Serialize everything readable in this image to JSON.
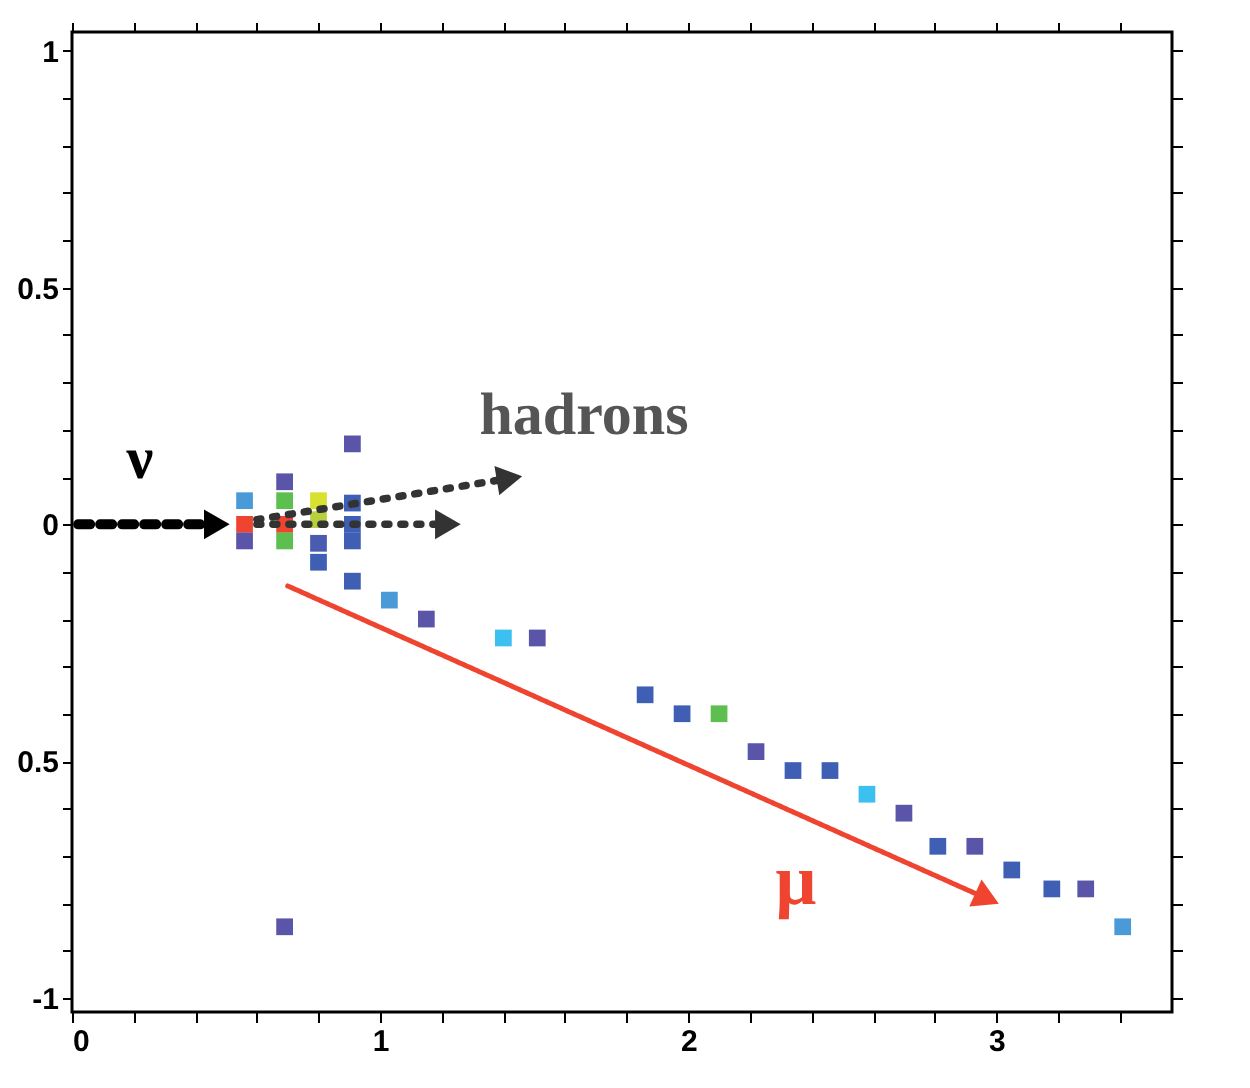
{
  "chart_data": {
    "type": "scatter",
    "marker": "square",
    "grid": false,
    "x": [
      0.56,
      0.56,
      0.56,
      0.69,
      0.69,
      0.69,
      0.69,
      0.8,
      0.8,
      0.8,
      0.8,
      0.91,
      0.91,
      0.91,
      0.91,
      0.91,
      1.03,
      1.15,
      1.4,
      1.51,
      1.86,
      1.98,
      2.1,
      2.22,
      2.34,
      2.46,
      2.58,
      2.7,
      2.81,
      2.93,
      3.05,
      3.18,
      3.29,
      3.41,
      0.69
    ],
    "values": [
      0.05,
      0.0,
      -0.035,
      0.09,
      0.05,
      0.0,
      -0.035,
      0.05,
      0.01,
      -0.04,
      -0.08,
      0.17,
      0.045,
      0.0,
      -0.035,
      -0.12,
      -0.16,
      -0.2,
      -0.24,
      -0.24,
      -0.36,
      -0.4,
      -0.4,
      -0.48,
      -0.52,
      -0.52,
      -0.57,
      -0.61,
      -0.68,
      -0.68,
      -0.73,
      -0.77,
      -0.77,
      -0.85,
      -0.85
    ],
    "colors": [
      "#4a9ad8",
      "#ee4430",
      "#5a55a8",
      "#5a55a8",
      "#5cbf50",
      "#ee4430",
      "#5cbf50",
      "#d8e030",
      "#b8d040",
      "#4a5cb0",
      "#3f5fb5",
      "#5a55a8",
      "#3f5fb5",
      "#3f5fb5",
      "#3f5fb5",
      "#3f5fb5",
      "#4a9ad8",
      "#5a55a8",
      "#3cc0ef",
      "#5a55a8",
      "#3f5fb5",
      "#3f5fb5",
      "#5cbf50",
      "#5a55a8",
      "#3f5fb5",
      "#3f5fb5",
      "#3cc0ef",
      "#5a55a8",
      "#3f5fb5",
      "#5a55a8",
      "#3f5fb5",
      "#3f5fb5",
      "#5a55a8",
      "#4a9ad8",
      "#5a55a8"
    ],
    "xlim": [
      0,
      3.57
    ],
    "ylim": [
      -1.03,
      1.04
    ],
    "xticks": [
      0,
      {
        "value": 0.2,
        "label": null
      },
      {
        "value": 0.4,
        "label": null
      },
      {
        "value": 0.6,
        "label": null
      },
      {
        "value": 0.8,
        "label": null
      },
      1,
      {
        "value": 1.2,
        "label": null
      },
      {
        "value": 1.4,
        "label": null
      },
      {
        "value": 1.6,
        "label": null
      },
      {
        "value": 1.8,
        "label": null
      },
      2,
      {
        "value": 2.2,
        "label": null
      },
      {
        "value": 2.4,
        "label": null
      },
      {
        "value": 2.6,
        "label": null
      },
      {
        "value": 2.8,
        "label": null
      },
      3,
      {
        "value": 3.2,
        "label": null
      },
      {
        "value": 3.4,
        "label": null
      }
    ],
    "yticks": [
      -1,
      {
        "value": -0.9,
        "label": null
      },
      {
        "value": -0.8,
        "label": null
      },
      {
        "value": -0.7,
        "label": null
      },
      {
        "value": -0.6,
        "label": null
      },
      {
        "value": -0.5,
        "label": "0.5"
      },
      {
        "value": -0.4,
        "label": null
      },
      {
        "value": -0.3,
        "label": null
      },
      {
        "value": -0.2,
        "label": null
      },
      {
        "value": -0.1,
        "label": null
      },
      0,
      {
        "value": 0.1,
        "label": null
      },
      {
        "value": 0.2,
        "label": null
      },
      {
        "value": 0.3,
        "label": null
      },
      {
        "value": 0.4,
        "label": null
      },
      0.5,
      {
        "value": 0.6,
        "label": null
      },
      {
        "value": 0.7,
        "label": null
      },
      {
        "value": 0.8,
        "label": null
      },
      {
        "value": 0.9,
        "label": null
      },
      1
    ],
    "annotations": [
      "ν",
      "hadrons",
      "μ"
    ]
  }
}
